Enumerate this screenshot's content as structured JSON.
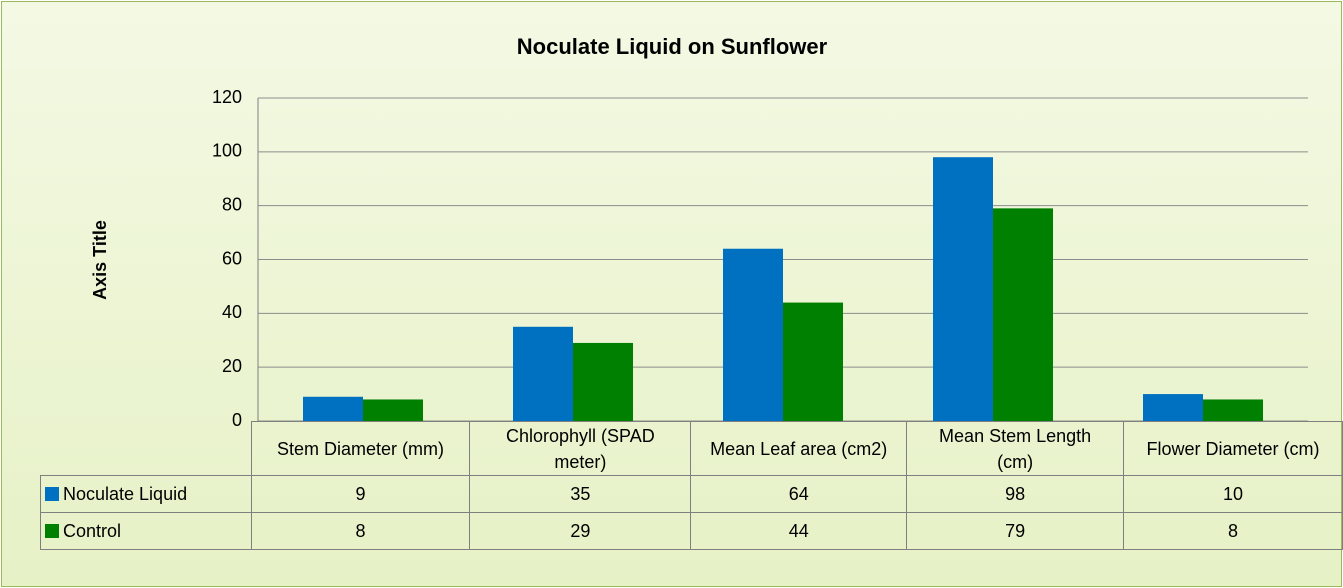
{
  "chart_data": {
    "type": "bar",
    "title": "Noculate Liquid on Sunflower",
    "y_axis_label": "Axis Title",
    "categories": [
      "Stem Diameter (mm)",
      "Chlorophyll (SPAD meter)",
      "Mean Leaf area (cm2)",
      "Mean Stem Length (cm)",
      "Flower Diameter (cm)"
    ],
    "series": [
      {
        "name": "Noculate Liquid",
        "color": "#0070c0",
        "values": [
          9,
          35,
          64,
          98,
          10
        ]
      },
      {
        "name": "Control",
        "color": "#008000",
        "values": [
          8,
          29,
          44,
          79,
          8
        ]
      }
    ],
    "ylim": [
      0,
      120
    ],
    "yticks": [
      0,
      20,
      40,
      60,
      80,
      100,
      120
    ],
    "grid": true
  }
}
